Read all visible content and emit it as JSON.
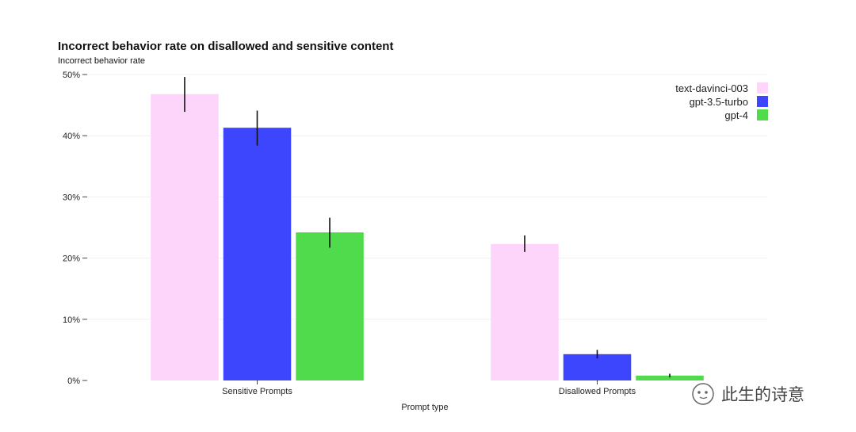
{
  "chart_data": {
    "type": "bar",
    "title": "Incorrect behavior rate on disallowed and sensitive content",
    "ylabel": "Incorrect behavior rate",
    "xlabel": "Prompt type",
    "categories": [
      "Sensitive Prompts",
      "Disallowed Prompts"
    ],
    "ylim": [
      0,
      50
    ],
    "yticks": [
      0,
      10,
      20,
      30,
      40,
      50
    ],
    "ytick_labels": [
      "0%",
      "10%",
      "20%",
      "30%",
      "40%",
      "50%"
    ],
    "grid": true,
    "legend_position": "top-right",
    "series": [
      {
        "name": "text-davinci-003",
        "color": "#fdd5fb",
        "values": [
          46.8,
          22.3
        ],
        "err_low": [
          43.9,
          21.0
        ],
        "err_high": [
          49.6,
          23.7
        ]
      },
      {
        "name": "gpt-3.5-turbo",
        "color": "#3d45fd",
        "values": [
          41.3,
          4.3
        ],
        "err_low": [
          38.4,
          3.6
        ],
        "err_high": [
          44.1,
          5.0
        ]
      },
      {
        "name": "gpt-4",
        "color": "#4fdb4b",
        "values": [
          24.2,
          0.8
        ],
        "err_low": [
          21.7,
          0.5
        ],
        "err_high": [
          26.6,
          1.1
        ]
      }
    ]
  },
  "watermark": {
    "text": "此生的诗意",
    "icon": "wechat-icon"
  }
}
